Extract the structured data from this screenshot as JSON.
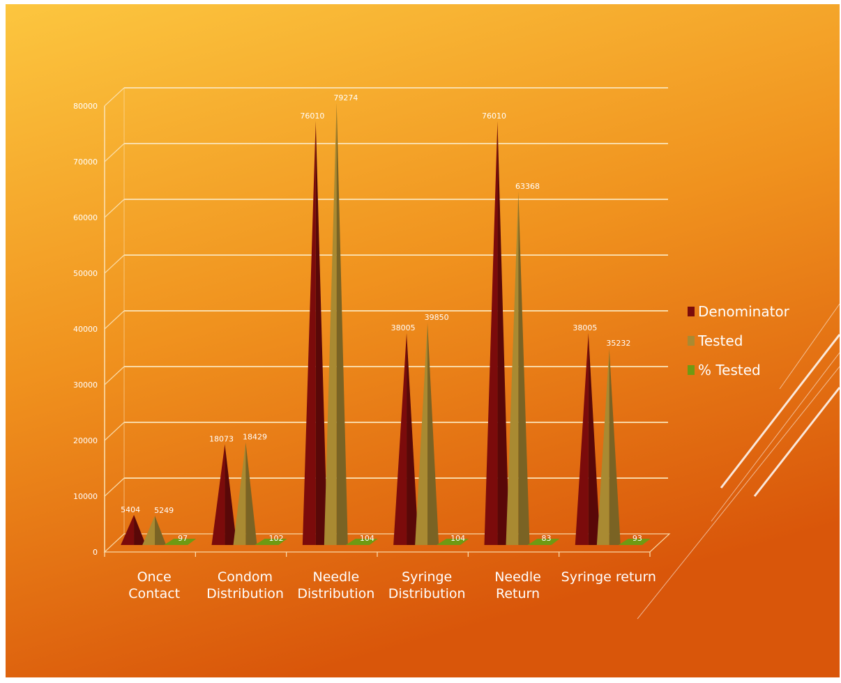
{
  "colors": {
    "background_top": "#FCC63F",
    "background_mid": "#F0921E",
    "background_bottom": "#D9560A",
    "gridline": "#FBE3B7",
    "text": "#FFFFFF"
  },
  "chart_data": {
    "type": "bar",
    "style": "3d-cone",
    "title": "",
    "xlabel": "",
    "ylabel": "",
    "ylim": [
      0,
      80000
    ],
    "yticks": [
      0,
      10000,
      20000,
      30000,
      40000,
      50000,
      60000,
      70000,
      80000
    ],
    "grid": true,
    "legend_position": "right",
    "categories": [
      "Once Contact",
      "Condom Distribution",
      "Needle Distribution",
      "Syringe Distribution",
      "Needle Return",
      "Syringe return"
    ],
    "series": [
      {
        "name": "Denominator",
        "color": "#7B0B0B",
        "values": [
          5404,
          18073,
          76010,
          38005,
          76010,
          38005
        ]
      },
      {
        "name": "Tested",
        "color": "#A98A32",
        "values": [
          5249,
          18429,
          79274,
          39850,
          63368,
          35232
        ]
      },
      {
        "name": "% Tested",
        "color": "#6E9A13",
        "values": [
          97,
          102,
          104,
          104,
          83,
          93
        ]
      }
    ]
  }
}
